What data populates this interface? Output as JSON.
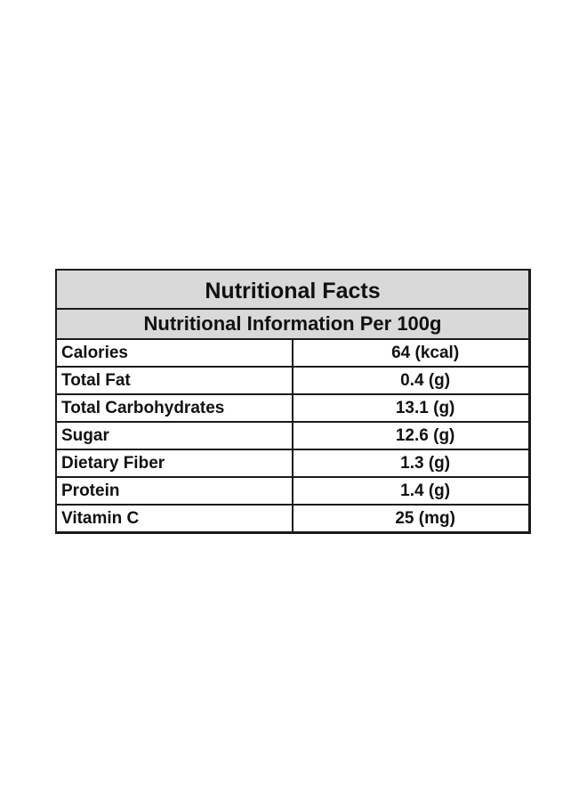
{
  "table": {
    "title": "Nutritional Facts",
    "subtitle": "Nutritional Information Per 100g",
    "rows": [
      {
        "nutrient": "Calories",
        "value": "64 (kcal)"
      },
      {
        "nutrient": "Total Fat",
        "value": "0.4 (g)"
      },
      {
        "nutrient": "Total Carbohydrates",
        "value": "13.1 (g)"
      },
      {
        "nutrient": "Sugar",
        "value": "12.6 (g)"
      },
      {
        "nutrient": "Dietary Fiber",
        "value": "1.3 (g)"
      },
      {
        "nutrient": "Protein",
        "value": "1.4 (g)"
      },
      {
        "nutrient": "Vitamin C",
        "value": "25 (mg)"
      }
    ]
  },
  "colors": {
    "header_background": "#d9d9d9",
    "border": "#1a1a1a",
    "text": "#111111"
  }
}
